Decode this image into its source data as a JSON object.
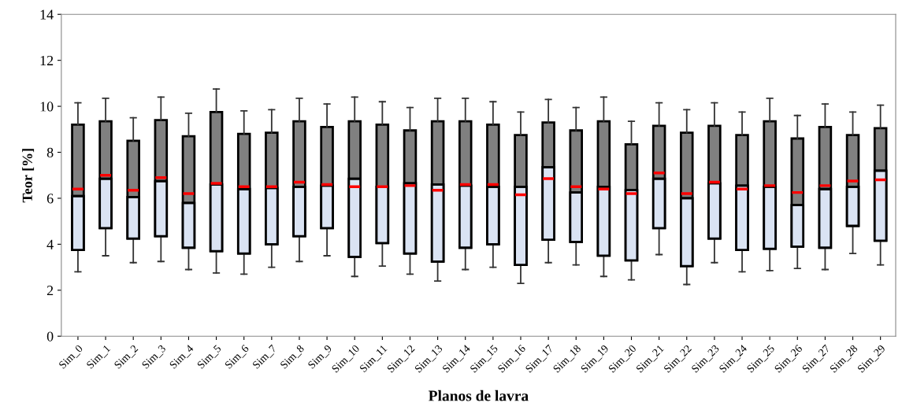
{
  "chart_data": {
    "type": "box",
    "xlabel": "Planos de lavra",
    "ylabel": "Teor [%]",
    "categories": [
      "Sim_0",
      "Sim_1",
      "Sim_2",
      "Sim_3",
      "Sim_4",
      "Sim_5",
      "Sim_6",
      "Sim_7",
      "Sim_8",
      "Sim_9",
      "Sim_10",
      "Sim_11",
      "Sim_12",
      "Sim_13",
      "Sim_14",
      "Sim_15",
      "Sim_16",
      "Sim_17",
      "Sim_18",
      "Sim_19",
      "Sim_20",
      "Sim_21",
      "Sim_22",
      "Sim_23",
      "Sim_24",
      "Sim_25",
      "Sim_26",
      "Sim_27",
      "Sim_28",
      "Sim_29"
    ],
    "ylim": [
      0,
      14
    ],
    "yticks": [
      0,
      2,
      4,
      6,
      8,
      10,
      12,
      14
    ],
    "grid": false,
    "legend": false,
    "series": [
      {
        "color": "#dae3f3",
        "colors": [
          "#808080",
          "#808080",
          "#808080",
          "#808080",
          "#808080",
          "#808080",
          "#808080",
          "#808080",
          "#808080",
          "#808080",
          "#808080",
          "#808080",
          "#808080",
          "#808080",
          "#808080",
          "#808080",
          "#808080",
          "#808080",
          "#808080",
          "#808080",
          "#808080",
          "#808080",
          "#808080",
          "#808080",
          "#808080",
          "#808080",
          "#808080",
          "#808080",
          "#808080",
          "#808080"
        ],
        "boxes": [
          {
            "low": 2.8,
            "q1": 3.75,
            "median": 6.1,
            "q3": 9.2,
            "high": 10.15,
            "mean": 6.4
          },
          {
            "low": 3.5,
            "q1": 4.7,
            "median": 6.85,
            "q3": 9.35,
            "high": 10.35,
            "mean": 7.0
          },
          {
            "low": 3.2,
            "q1": 4.25,
            "median": 6.05,
            "q3": 8.5,
            "high": 9.5,
            "mean": 6.35
          },
          {
            "low": 3.25,
            "q1": 4.35,
            "median": 6.75,
            "q3": 9.4,
            "high": 10.4,
            "mean": 6.9
          },
          {
            "low": 2.9,
            "q1": 3.85,
            "median": 5.8,
            "q3": 8.7,
            "high": 9.7,
            "mean": 6.2
          },
          {
            "low": 2.75,
            "q1": 3.7,
            "median": 6.6,
            "q3": 9.75,
            "high": 10.75,
            "mean": 6.65
          },
          {
            "low": 2.7,
            "q1": 3.6,
            "median": 6.4,
            "q3": 8.8,
            "high": 9.8,
            "mean": 6.5
          },
          {
            "low": 3.0,
            "q1": 4.0,
            "median": 6.45,
            "q3": 8.85,
            "high": 9.85,
            "mean": 6.5
          },
          {
            "low": 3.25,
            "q1": 4.35,
            "median": 6.5,
            "q3": 9.35,
            "high": 10.35,
            "mean": 6.7
          },
          {
            "low": 3.5,
            "q1": 4.7,
            "median": 6.55,
            "q3": 9.1,
            "high": 10.1,
            "mean": 6.6
          },
          {
            "low": 2.6,
            "q1": 3.45,
            "median": 6.85,
            "q3": 9.35,
            "high": 10.4,
            "mean": 6.5
          },
          {
            "low": 3.05,
            "q1": 4.05,
            "median": 6.5,
            "q3": 9.2,
            "high": 10.2,
            "mean": 6.5
          },
          {
            "low": 2.7,
            "q1": 3.6,
            "median": 6.65,
            "q3": 8.95,
            "high": 9.95,
            "mean": 6.55
          },
          {
            "low": 2.4,
            "q1": 3.25,
            "median": 6.6,
            "q3": 9.35,
            "high": 10.35,
            "mean": 6.35
          },
          {
            "low": 2.9,
            "q1": 3.85,
            "median": 6.55,
            "q3": 9.35,
            "high": 10.35,
            "mean": 6.6
          },
          {
            "low": 3.0,
            "q1": 4.0,
            "median": 6.5,
            "q3": 9.2,
            "high": 10.2,
            "mean": 6.6
          },
          {
            "low": 2.3,
            "q1": 3.1,
            "median": 6.5,
            "q3": 8.75,
            "high": 9.75,
            "mean": 6.15
          },
          {
            "low": 3.2,
            "q1": 4.2,
            "median": 7.35,
            "q3": 9.3,
            "high": 10.3,
            "mean": 6.85
          },
          {
            "low": 3.1,
            "q1": 4.1,
            "median": 6.25,
            "q3": 8.95,
            "high": 9.95,
            "mean": 6.5
          },
          {
            "low": 2.6,
            "q1": 3.5,
            "median": 6.5,
            "q3": 9.35,
            "high": 10.4,
            "mean": 6.4
          },
          {
            "low": 2.45,
            "q1": 3.3,
            "median": 6.35,
            "q3": 8.35,
            "high": 9.35,
            "mean": 6.2
          },
          {
            "low": 3.55,
            "q1": 4.7,
            "median": 6.85,
            "q3": 9.15,
            "high": 10.15,
            "mean": 7.1
          },
          {
            "low": 2.25,
            "q1": 3.05,
            "median": 6.0,
            "q3": 8.85,
            "high": 9.85,
            "mean": 6.2
          },
          {
            "low": 3.2,
            "q1": 4.25,
            "median": 6.65,
            "q3": 9.15,
            "high": 10.15,
            "mean": 6.7
          },
          {
            "low": 2.8,
            "q1": 3.75,
            "median": 6.55,
            "q3": 8.75,
            "high": 9.75,
            "mean": 6.4
          },
          {
            "low": 2.85,
            "q1": 3.8,
            "median": 6.5,
            "q3": 9.35,
            "high": 10.35,
            "mean": 6.55
          },
          {
            "low": 2.95,
            "q1": 3.9,
            "median": 5.7,
            "q3": 8.6,
            "high": 9.6,
            "mean": 6.25
          },
          {
            "low": 2.9,
            "q1": 3.85,
            "median": 6.4,
            "q3": 9.1,
            "high": 10.1,
            "mean": 6.55
          },
          {
            "low": 3.6,
            "q1": 4.8,
            "median": 6.5,
            "q3": 8.75,
            "high": 9.75,
            "mean": 6.75
          },
          {
            "low": 3.1,
            "q1": 4.15,
            "median": 7.2,
            "q3": 9.05,
            "high": 10.05,
            "mean": 6.8
          }
        ]
      }
    ]
  }
}
